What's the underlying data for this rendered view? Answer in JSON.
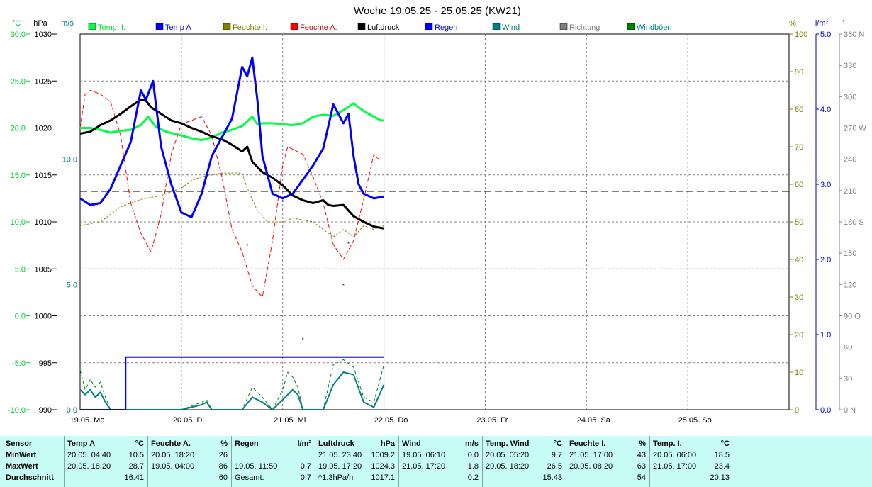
{
  "chart_data": {
    "type": "line",
    "title": "Woche 19.05.25 - 25.05.25 (KW21)",
    "unit_labels": {
      "temp": "°C",
      "pressure": "hPa",
      "wind": "m/s",
      "humidity": "%",
      "rain": "l/m²",
      "direction": "°"
    },
    "axes": {
      "temp": {
        "min": -10,
        "max": 30,
        "ticks": [
          "30.0",
          "25.0",
          "20.0",
          "15.0",
          "10.0",
          "5.0",
          "0.0",
          "-5.0",
          "-10.0"
        ],
        "color": "#00cc33"
      },
      "pressure": {
        "min": 990,
        "max": 1030,
        "ticks": [
          "1030",
          "1025",
          "1020",
          "1015",
          "1010",
          "1005",
          "1000",
          "995",
          "990"
        ]
      },
      "wind": {
        "min": 0,
        "max": 15,
        "ticks": [
          "10.0",
          "5.0",
          "0.0"
        ],
        "color": "#007f7f"
      },
      "humidity": {
        "min": 0,
        "max": 100,
        "ticks": [
          "100",
          "90",
          "80",
          "70",
          "60",
          "50",
          "40",
          "30",
          "20",
          "10",
          "0"
        ],
        "color": "#808000"
      },
      "rain": {
        "min": 0,
        "max": 5,
        "ticks": [
          "5.0",
          "4.0",
          "3.0",
          "2.0",
          "1.0",
          "0.0"
        ],
        "color": "#0000cc"
      },
      "direction": {
        "min": 0,
        "max": 360,
        "ticks": [
          "360 N",
          "330",
          "300",
          "270 W",
          "240",
          "210",
          "180 S",
          "150",
          "120",
          "90 O",
          "60",
          "30",
          "0 N"
        ]
      }
    },
    "x_ticks": [
      "19.05.  Mo",
      "20.05.  Di",
      "21.05.  Mi",
      "22.05.  Do",
      "23.05.  Fr",
      "24.05.  Sa",
      "25.05.  So"
    ],
    "x_range_days": [
      0,
      7
    ],
    "grid": true,
    "legend": [
      {
        "name": "Temp. I.",
        "color": "#00ff40",
        "text_color": "#00dd33"
      },
      {
        "name": "Temp A",
        "color": "#0000ff",
        "text_color": "#0000ff"
      },
      {
        "name": "Feuchte I.",
        "color": "#808000",
        "text_color": "#808000"
      },
      {
        "name": "Feuchte A.",
        "color": "#ff0000",
        "text_color": "#cc0000"
      },
      {
        "name": "Luftdruck",
        "color": "#000000",
        "text_color": "#000000"
      },
      {
        "name": "Regen",
        "color": "#0000ff",
        "text_color": "#0000ff"
      },
      {
        "name": "Wind",
        "color": "#008080",
        "text_color": "#008080"
      },
      {
        "name": "Richtung",
        "color": "#808080",
        "text_color": "#808080"
      },
      {
        "name": "Windböen",
        "color": "#008000",
        "text_color": "#008080"
      }
    ],
    "reference_line": {
      "axis": "pressure",
      "value": 1013.25
    },
    "series": [
      {
        "name": "Temp. I.",
        "axis": "temp",
        "color": "#00ff40",
        "width": 3,
        "x": [
          0,
          0.1,
          0.2,
          0.3,
          0.4,
          0.5,
          0.6,
          0.67,
          0.75,
          0.85,
          1.0,
          1.1,
          1.2,
          1.3,
          1.4,
          1.5,
          1.6,
          1.7,
          1.75,
          1.8,
          1.9,
          2.0,
          2.1,
          2.2,
          2.3,
          2.4,
          2.5,
          2.6,
          2.7,
          2.8,
          2.9,
          2.97,
          3.0
        ],
        "y": [
          20.0,
          20.0,
          19.8,
          19.5,
          19.7,
          19.8,
          20.3,
          21.2,
          20.1,
          19.6,
          19.2,
          18.9,
          18.7,
          19.0,
          19.5,
          19.8,
          20.2,
          21.2,
          20.4,
          20.5,
          20.5,
          20.4,
          20.3,
          20.5,
          21.2,
          21.4,
          21.3,
          21.9,
          22.6,
          21.8,
          21.2,
          20.8,
          20.8
        ]
      },
      {
        "name": "Temp A",
        "axis": "temp",
        "color": "#0000ff",
        "width": 3,
        "x": [
          0,
          0.1,
          0.2,
          0.3,
          0.4,
          0.5,
          0.6,
          0.65,
          0.72,
          0.8,
          0.9,
          1.0,
          1.1,
          1.2,
          1.3,
          1.4,
          1.5,
          1.6,
          1.65,
          1.7,
          1.75,
          1.8,
          1.9,
          2.0,
          2.1,
          2.2,
          2.3,
          2.4,
          2.5,
          2.6,
          2.65,
          2.7,
          2.75,
          2.8,
          2.9,
          3.0
        ],
        "y": [
          12.5,
          11.8,
          12.0,
          13.5,
          16.0,
          18.5,
          24.0,
          23.0,
          25.0,
          18.0,
          14.0,
          11.0,
          10.5,
          13.0,
          17.0,
          19.0,
          21.0,
          26.5,
          25.5,
          27.5,
          23.0,
          17.0,
          13.0,
          12.5,
          13.0,
          14.5,
          16.0,
          17.8,
          22.5,
          20.5,
          21.5,
          17.0,
          14.0,
          13.0,
          12.5,
          12.7
        ]
      },
      {
        "name": "Feuchte I.",
        "axis": "humidity",
        "color": "#808000",
        "width": 1,
        "dash": "3,2",
        "x": [
          0,
          0.2,
          0.4,
          0.6,
          0.8,
          1.0,
          1.1,
          1.2,
          1.4,
          1.6,
          1.65,
          1.75,
          1.85,
          2.0,
          2.1,
          2.3,
          2.5,
          2.6,
          2.7,
          2.8,
          2.9,
          3.0
        ],
        "y": [
          49,
          50,
          54,
          56,
          57,
          59,
          61,
          62,
          63,
          63,
          59,
          53,
          50,
          50,
          51,
          50,
          46,
          48,
          46,
          49,
          48,
          49
        ]
      },
      {
        "name": "Feuchte A.",
        "axis": "humidity",
        "color": "#ff0000",
        "width": 1,
        "dash": "6,3",
        "x": [
          0,
          0.05,
          0.1,
          0.2,
          0.3,
          0.4,
          0.5,
          0.6,
          0.7,
          0.8,
          0.9,
          1.0,
          1.1,
          1.2,
          1.3,
          1.4,
          1.5,
          1.6,
          1.7,
          1.8,
          1.9,
          2.0,
          2.05,
          2.2,
          2.3,
          2.4,
          2.5,
          2.6,
          2.7,
          2.8,
          2.9,
          2.97
        ],
        "y": [
          75,
          84,
          85,
          84,
          82,
          73,
          55,
          47,
          42,
          52,
          68,
          76,
          77,
          78,
          73,
          62,
          48,
          42,
          33,
          30,
          45,
          65,
          70,
          68,
          62,
          55,
          44,
          40,
          45,
          56,
          68,
          66
        ]
      },
      {
        "name": "Luftdruck",
        "axis": "pressure",
        "color": "#000000",
        "width": 3,
        "x": [
          0,
          0.1,
          0.2,
          0.3,
          0.4,
          0.5,
          0.6,
          0.65,
          0.7,
          0.8,
          0.9,
          1.0,
          1.1,
          1.2,
          1.3,
          1.4,
          1.5,
          1.6,
          1.65,
          1.7,
          1.8,
          1.9,
          2.0,
          2.1,
          2.2,
          2.3,
          2.4,
          2.45,
          2.5,
          2.6,
          2.7,
          2.8,
          2.9,
          3.0
        ],
        "y": [
          1019.4,
          1019.6,
          1020.3,
          1020.8,
          1021.5,
          1022.3,
          1023.0,
          1022.9,
          1022.2,
          1021.5,
          1020.8,
          1020.5,
          1020.0,
          1019.6,
          1019.1,
          1018.8,
          1018.2,
          1017.5,
          1018.0,
          1016.4,
          1015.3,
          1014.7,
          1013.9,
          1012.8,
          1012.3,
          1012.0,
          1012.3,
          1011.8,
          1011.7,
          1011.8,
          1010.6,
          1010.0,
          1009.5,
          1009.3
        ]
      },
      {
        "name": "Regen",
        "axis": "rain",
        "color": "#0000ff",
        "width": 2,
        "step": true,
        "x": [
          0,
          0.41,
          0.45,
          0.5,
          3.0
        ],
        "y": [
          0,
          0,
          0.7,
          0.7,
          0.7
        ]
      },
      {
        "name": "Wind",
        "axis": "wind",
        "color": "#008080",
        "width": 2,
        "x": [
          0,
          0.05,
          0.1,
          0.15,
          0.2,
          0.25,
          0.3,
          1.0,
          1.2,
          1.25,
          1.3,
          1.6,
          1.7,
          1.8,
          1.9,
          2.0,
          2.1,
          2.15,
          2.2,
          2.4,
          2.5,
          2.6,
          2.7,
          2.8,
          2.9,
          3.0
        ],
        "y": [
          0.8,
          0.6,
          0.8,
          0.5,
          0.7,
          0.3,
          0,
          0,
          0.2,
          0.3,
          0,
          0,
          0.5,
          0.3,
          0,
          0.4,
          0.8,
          0.6,
          0,
          0,
          1.0,
          1.5,
          1.4,
          0.3,
          0.1,
          1.0
        ]
      },
      {
        "name": "Windböen",
        "axis": "wind",
        "color": "#008000",
        "width": 1,
        "dash": "5,3",
        "x": [
          0,
          0.05,
          0.1,
          0.15,
          0.2,
          0.25,
          0.3,
          1.0,
          1.2,
          1.25,
          1.3,
          1.6,
          1.7,
          1.8,
          1.9,
          2.0,
          2.05,
          2.1,
          2.15,
          2.2,
          2.4,
          2.5,
          2.6,
          2.7,
          2.8,
          2.9,
          3.0
        ],
        "y": [
          1.6,
          0.8,
          1.2,
          0.9,
          1.1,
          0.5,
          0,
          0,
          0.3,
          0.4,
          0,
          0,
          0.9,
          0.5,
          0,
          0.8,
          1.5,
          1.3,
          0.9,
          0,
          0,
          1.8,
          2.0,
          1.7,
          0.5,
          0.3,
          1.8
        ]
      }
    ],
    "scatter": {
      "name": "Richtung",
      "axis": "direction",
      "color": "#404040",
      "x": [
        1.65,
        2.0,
        2.2,
        2.6,
        2.65
      ],
      "y": [
        158,
        200,
        68,
        120,
        160
      ]
    }
  },
  "stats": {
    "row_labels": [
      "Sensor",
      "MinWert",
      "MaxWert",
      "Durchschnitt"
    ],
    "columns": [
      {
        "header": "Temp A",
        "unit": "°C",
        "rows": [
          [
            "20.05.  04:40",
            "10.5"
          ],
          [
            "20.05.  18:20",
            "28.7"
          ],
          [
            "",
            "16.41"
          ]
        ]
      },
      {
        "header": "Feuchte A.",
        "unit": "%",
        "rows": [
          [
            "20.05.  18:20",
            "26"
          ],
          [
            "19.05.  04:00",
            "86"
          ],
          [
            "",
            "60"
          ]
        ]
      },
      {
        "header": "Regen",
        "unit": "l/m²",
        "rows": [
          [
            "",
            ""
          ],
          [
            "19.05.  11:50",
            "0.7"
          ],
          [
            "Gesamt:",
            "0.7"
          ]
        ]
      },
      {
        "header": "Luftdruck",
        "unit": "hPa",
        "rows": [
          [
            "21.05.  23:40",
            "1009.2"
          ],
          [
            "19.05.  17:20",
            "1024.3"
          ],
          [
            "^1.3hPa/h",
            "1017.1"
          ]
        ]
      },
      {
        "header": "Wind",
        "unit": "m/s",
        "rows": [
          [
            "19.05.  06:10",
            "0.0"
          ],
          [
            "21.05.  17:20",
            "1.8"
          ],
          [
            "",
            "0.2"
          ]
        ]
      },
      {
        "header": "Temp. Wind",
        "unit": "°C",
        "rows": [
          [
            "20.05.  05:20",
            "9.7"
          ],
          [
            "20.05.  18:20",
            "26.5"
          ],
          [
            "",
            "15.43"
          ]
        ]
      },
      {
        "header": "Feuchte I.",
        "unit": "%",
        "rows": [
          [
            "21.05.  17:00",
            "43"
          ],
          [
            "20.05.  08:20",
            "63"
          ],
          [
            "",
            "54"
          ]
        ]
      },
      {
        "header": "Temp. I.",
        "unit": "°C",
        "rows": [
          [
            "20.05.  06:00",
            "18.5"
          ],
          [
            "21.05.  17:00",
            "23.4"
          ],
          [
            "",
            "20.13"
          ]
        ]
      }
    ]
  }
}
